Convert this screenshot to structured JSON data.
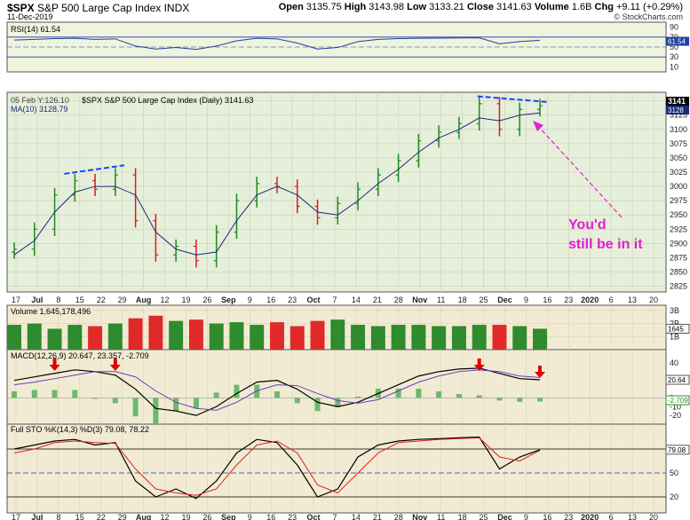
{
  "header": {
    "symbol": "$SPX",
    "name": "S&P 500 Large Cap Index",
    "exchange": "INDX",
    "date": "11-Dec-2019",
    "open_label": "Open",
    "open": "3135.75",
    "high_label": "High",
    "high": "3143.98",
    "low_label": "Low",
    "low": "3133.21",
    "close_label": "Close",
    "close": "3141.63",
    "volume_label": "Volume",
    "volume": "1.6B",
    "chg_label": "Chg",
    "chg": "+9.11 (+0.29%)",
    "watermark": "© StockCharts.com"
  },
  "colors": {
    "up": "#1f8a1f",
    "down": "#d42020",
    "panel_bg": "#eef4dd",
    "price_bg": "#e6efd9",
    "vol_up": "#2e8b2e",
    "vol_down": "#e02a2a",
    "annotation": "#e020d0",
    "trend": "#1f3fff"
  },
  "rsi": {
    "label": "RSI(14) 61.54",
    "value_label": "61.54",
    "ticks": [
      "90",
      "70",
      "50",
      "30",
      "10"
    ]
  },
  "price": {
    "label": "$SPX S&P 500 Large Cap Index (Daily) 3141.63",
    "ma_label": "MA(10) 3128.79",
    "hover_label": "05 Feb Y:126.10",
    "last_label": "3141",
    "ma_value_label": "3128",
    "annotation_text_1": "You'd",
    "annotation_text_2": "still be in it",
    "y_ticks": [
      "3150",
      "3125",
      "3100",
      "3075",
      "3050",
      "3025",
      "3000",
      "2975",
      "2950",
      "2925",
      "2900",
      "2875",
      "2850",
      "2825"
    ]
  },
  "volume": {
    "label": "Volume 1,645,178,496",
    "ticks": [
      "3B",
      "2B",
      "1B"
    ],
    "last_label": "1645"
  },
  "macd": {
    "label": "MACD(12,26,9) 20.647, 23.357, -2.709",
    "value_label": "20.64",
    "value_label_2": "23.35",
    "hist_label": "-2.709",
    "ticks": [
      "40",
      "20",
      "0",
      "-10",
      "-20"
    ]
  },
  "sto": {
    "label": "Full STO %K(14,3) %D(3) 79.08, 78.22",
    "value_label": "79.08",
    "ticks": [
      "80",
      "50",
      "20"
    ]
  },
  "x_axis": {
    "labels": [
      "17",
      "Jul",
      "8",
      "15",
      "22",
      "29",
      "Aug",
      "12",
      "19",
      "26",
      "Sep",
      "9",
      "16",
      "23",
      "Oct",
      "7",
      "14",
      "21",
      "28",
      "Nov",
      "11",
      "18",
      "25",
      "Dec",
      "9",
      "16",
      "23",
      "2020",
      "6",
      "13",
      "20"
    ]
  },
  "chart_data": {
    "type": "line",
    "title": "$SPX S&P 500 Large Cap Index (Daily)",
    "x": [
      "2019-06-17",
      "2019-06-24",
      "2019-07-01",
      "2019-07-08",
      "2019-07-15",
      "2019-07-22",
      "2019-07-29",
      "2019-08-05",
      "2019-08-12",
      "2019-08-19",
      "2019-08-26",
      "2019-09-03",
      "2019-09-09",
      "2019-09-16",
      "2019-09-23",
      "2019-09-30",
      "2019-10-07",
      "2019-10-14",
      "2019-10-21",
      "2019-10-28",
      "2019-11-04",
      "2019-11-11",
      "2019-11-18",
      "2019-11-25",
      "2019-12-02",
      "2019-12-09",
      "2019-12-11"
    ],
    "series": [
      {
        "name": "$SPX",
        "values": [
          2890,
          2925,
          2985,
          3010,
          2995,
          3020,
          2940,
          2880,
          2895,
          2870,
          2920,
          2975,
          3005,
          3000,
          2965,
          2945,
          2970,
          2995,
          3020,
          3045,
          3080,
          3095,
          3110,
          3145,
          3100,
          3135,
          3141.63
        ]
      },
      {
        "name": "MA(10)",
        "values": [
          2880,
          2905,
          2955,
          2990,
          3000,
          3000,
          2985,
          2920,
          2890,
          2880,
          2885,
          2940,
          2985,
          3000,
          2985,
          2955,
          2950,
          2975,
          3005,
          3030,
          3060,
          3085,
          3100,
          3120,
          3115,
          3125,
          3128.79
        ]
      }
    ],
    "ylim": [
      2815,
      3165
    ],
    "volume_b": [
      1.9,
      2.0,
      1.6,
      1.9,
      1.8,
      2.0,
      2.4,
      2.6,
      2.2,
      2.3,
      2.0,
      2.1,
      1.9,
      2.1,
      1.8,
      2.2,
      2.3,
      1.9,
      1.8,
      1.9,
      1.9,
      1.8,
      1.8,
      1.9,
      1.9,
      1.8,
      1.6
    ],
    "macd": [
      20,
      24,
      28,
      32,
      30,
      26,
      10,
      -12,
      -15,
      -20,
      -10,
      5,
      18,
      20,
      10,
      -5,
      -10,
      -5,
      5,
      15,
      25,
      30,
      33,
      34,
      28,
      22,
      20.647
    ],
    "macd_signal": [
      15,
      18,
      22,
      26,
      30,
      30,
      24,
      8,
      -5,
      -12,
      -14,
      -5,
      8,
      15,
      14,
      5,
      -3,
      -6,
      -2,
      8,
      18,
      25,
      30,
      32,
      30,
      25,
      23.357
    ],
    "sto_k": [
      80,
      85,
      90,
      92,
      85,
      88,
      40,
      20,
      30,
      18,
      40,
      75,
      92,
      88,
      60,
      20,
      30,
      70,
      85,
      90,
      92,
      93,
      94,
      95,
      55,
      70,
      79.08
    ],
    "sto_d": [
      75,
      80,
      88,
      90,
      88,
      87,
      55,
      30,
      25,
      22,
      30,
      60,
      85,
      90,
      75,
      35,
      25,
      50,
      75,
      88,
      90,
      92,
      93,
      94,
      70,
      65,
      78.22
    ]
  }
}
